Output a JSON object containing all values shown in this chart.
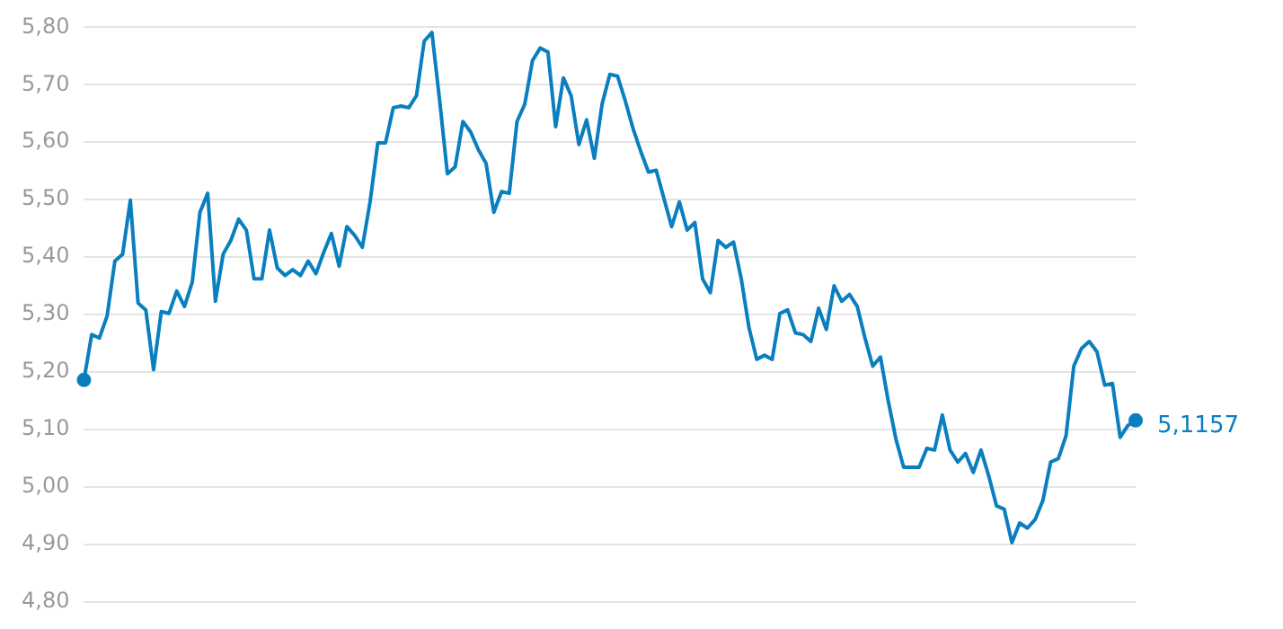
{
  "chart_data": {
    "type": "line",
    "categories": [
      null,
      null,
      null,
      null,
      null,
      null,
      null,
      null,
      null,
      null,
      null,
      null,
      null,
      null,
      null,
      null,
      null,
      null,
      null,
      null,
      null,
      null,
      null,
      null,
      null,
      null,
      null,
      null,
      null,
      null,
      null,
      null,
      null,
      null,
      null,
      null,
      null,
      null,
      null,
      null,
      null,
      null,
      null,
      null,
      null,
      null,
      null,
      null,
      null,
      null,
      null,
      null,
      null,
      null,
      null,
      null,
      null,
      null,
      null,
      null,
      null,
      null,
      null,
      null,
      null,
      null,
      null,
      null,
      null,
      null,
      null,
      null,
      null,
      null,
      null,
      null,
      null,
      null,
      null,
      null,
      null,
      null,
      null,
      null,
      null,
      null,
      null,
      null,
      null,
      null,
      null,
      null,
      null,
      null,
      null,
      null,
      null,
      null,
      null,
      null,
      null,
      null,
      null,
      null,
      null,
      null,
      null,
      null,
      null,
      null,
      null,
      null,
      null,
      null,
      null,
      null,
      null,
      null,
      null,
      null,
      null,
      null,
      null,
      null,
      null,
      null,
      null,
      null,
      null,
      null,
      null,
      null,
      null,
      null,
      null,
      null,
      null
    ],
    "series": [
      {
        "color": "#0a7fbf",
        "values": [
          5.186,
          5.265,
          5.259,
          5.298,
          5.393,
          5.405,
          5.499,
          5.32,
          5.308,
          5.204,
          5.305,
          5.302,
          5.341,
          5.314,
          5.356,
          5.478,
          5.511,
          5.323,
          5.405,
          5.429,
          5.466,
          5.447,
          5.362,
          5.362,
          5.447,
          5.381,
          5.368,
          5.378,
          5.368,
          5.393,
          5.371,
          5.408,
          5.441,
          5.384,
          5.453,
          5.438,
          5.417,
          5.496,
          5.599,
          5.599,
          5.66,
          5.663,
          5.66,
          5.681,
          5.776,
          5.791,
          5.672,
          5.545,
          5.557,
          5.636,
          5.618,
          5.587,
          5.563,
          5.478,
          5.514,
          5.511,
          5.636,
          5.666,
          5.742,
          5.764,
          5.757,
          5.627,
          5.712,
          5.681,
          5.596,
          5.639,
          5.572,
          5.666,
          5.718,
          5.715,
          5.672,
          5.624,
          5.584,
          5.548,
          5.551,
          5.502,
          5.453,
          5.496,
          5.447,
          5.46,
          5.362,
          5.338,
          5.429,
          5.417,
          5.426,
          5.362,
          5.277,
          5.222,
          5.229,
          5.222,
          5.302,
          5.308,
          5.268,
          5.265,
          5.253,
          5.311,
          5.274,
          5.35,
          5.323,
          5.335,
          5.314,
          5.259,
          5.21,
          5.226,
          5.15,
          5.083,
          5.034,
          5.034,
          5.034,
          5.067,
          5.064,
          5.125,
          5.064,
          5.043,
          5.058,
          5.025,
          5.064,
          5.019,
          4.967,
          4.961,
          4.903,
          4.937,
          4.928,
          4.943,
          4.976,
          5.043,
          5.049,
          5.089,
          5.21,
          5.241,
          5.253,
          5.235,
          5.177,
          5.18,
          5.086,
          5.107,
          5.1157
        ],
        "value_labels": [
          null,
          null,
          null,
          null,
          null,
          null,
          null,
          null,
          null,
          null,
          null,
          null,
          null,
          null,
          null,
          null,
          null,
          null,
          null,
          null,
          null,
          null,
          null,
          null,
          null,
          null,
          null,
          null,
          null,
          null,
          null,
          null,
          null,
          null,
          null,
          null,
          null,
          null,
          null,
          null,
          null,
          null,
          null,
          null,
          null,
          null,
          null,
          null,
          null,
          null,
          null,
          null,
          null,
          null,
          null,
          null,
          null,
          null,
          null,
          null,
          null,
          null,
          null,
          null,
          null,
          null,
          null,
          null,
          null,
          null,
          null,
          null,
          null,
          null,
          null,
          null,
          null,
          null,
          null,
          null,
          null,
          null,
          null,
          null,
          null,
          null,
          null,
          null,
          null,
          null,
          null,
          null,
          null,
          null,
          null,
          null,
          null,
          null,
          null,
          null,
          null,
          null,
          null,
          null,
          null,
          null,
          null,
          null,
          null,
          null,
          null,
          null,
          null,
          null,
          null,
          null,
          null,
          null,
          null,
          null,
          null,
          null,
          null,
          null,
          null,
          null,
          null,
          null,
          null,
          null,
          null,
          null,
          null,
          null,
          null,
          null,
          "5,1157"
        ]
      }
    ],
    "ylim": [
      4.8,
      5.8
    ],
    "yticks": [
      {
        "value": 4.8,
        "label": "4,80"
      },
      {
        "value": 4.9,
        "label": "4,90"
      },
      {
        "value": 5.0,
        "label": "5,00"
      },
      {
        "value": 5.1,
        "label": "5,10"
      },
      {
        "value": 5.2,
        "label": "5,20"
      },
      {
        "value": 5.3,
        "label": "5,30"
      },
      {
        "value": 5.4,
        "label": "5,40"
      },
      {
        "value": 5.5,
        "label": "5,50"
      },
      {
        "value": 5.6,
        "label": "5,60"
      },
      {
        "value": 5.7,
        "label": "5,70"
      },
      {
        "value": 5.8,
        "label": "5,80"
      }
    ],
    "grid": "y",
    "tick_labels": "y",
    "legend": false,
    "line_style": "solid"
  }
}
